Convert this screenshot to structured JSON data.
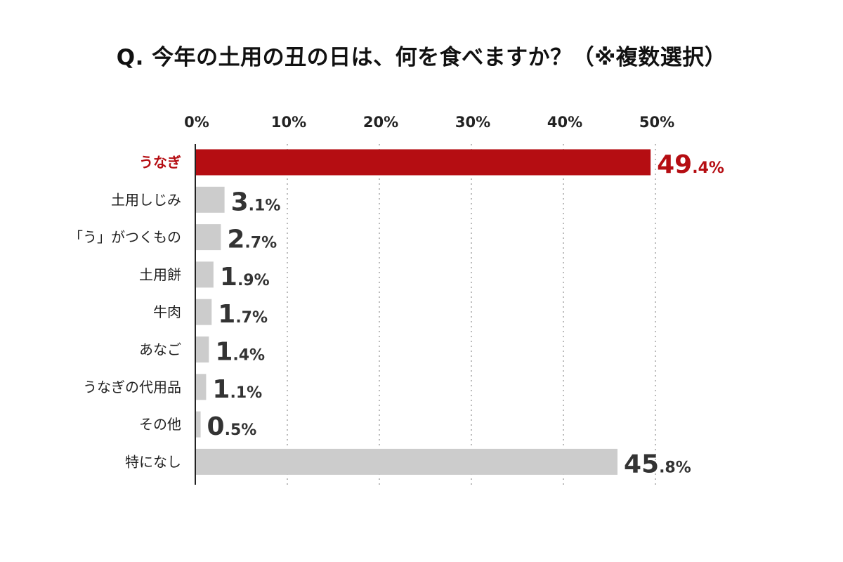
{
  "title": "Q. 今年の土用の丑の日は、何を食べますか？（※複数選択）",
  "colors": {
    "highlight": "#b50d12",
    "bar": "#cccccc",
    "grid": "#bbbbbb",
    "axis": "#222222"
  },
  "chart_data": {
    "type": "bar",
    "orientation": "horizontal",
    "title": "Q. 今年の土用の丑の日は、何を食べますか？（※複数選択）",
    "xlim": [
      0,
      50
    ],
    "x_ticks": [
      0,
      10,
      20,
      30,
      40,
      50
    ],
    "x_tick_labels": [
      "0%",
      "10%",
      "20%",
      "30%",
      "40%",
      "50%"
    ],
    "grid": "vertical dotted",
    "categories": [
      "うなぎ",
      "土用しじみ",
      "「う」がつくもの",
      "土用餅",
      "牛肉",
      "あなご",
      "うなぎの代用品",
      "その他",
      "特になし"
    ],
    "values": [
      49.4,
      3.1,
      2.7,
      1.9,
      1.7,
      1.4,
      1.1,
      0.5,
      45.8
    ],
    "value_labels": [
      {
        "int": "49",
        "dec": ".4%"
      },
      {
        "int": "3",
        "dec": ".1%"
      },
      {
        "int": "2",
        "dec": ".7%"
      },
      {
        "int": "1",
        "dec": ".9%"
      },
      {
        "int": "1",
        "dec": ".7%"
      },
      {
        "int": "1",
        "dec": ".4%"
      },
      {
        "int": "1",
        "dec": ".1%"
      },
      {
        "int": "0",
        "dec": ".5%"
      },
      {
        "int": "45",
        "dec": ".8%"
      }
    ],
    "highlight_index": 0
  }
}
